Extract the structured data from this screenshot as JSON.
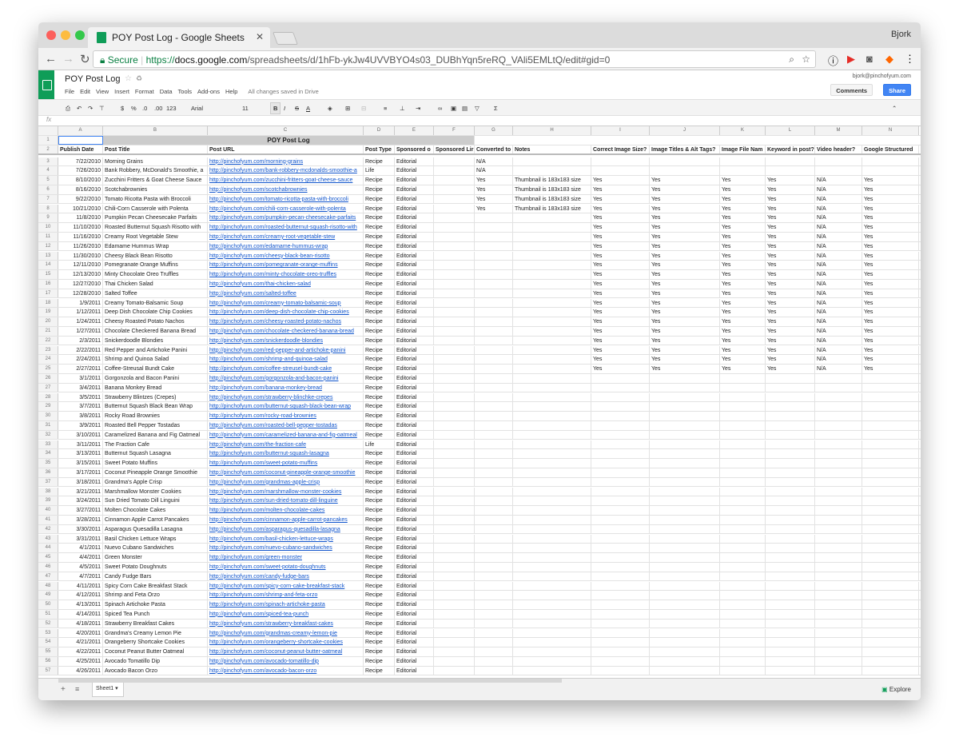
{
  "browser": {
    "tab_title": "POY Post Log - Google Sheets",
    "user": "Bjork",
    "secure_label": "Secure",
    "url_scheme": "https://",
    "url_domain": "docs.google.com",
    "url_path": "/spreadsheets/d/1hFb-ykJw4UVVBYO4s03_DUBhYqn5reRQ_VAli5EMLtQ/edit#gid=0"
  },
  "sheets": {
    "title": "POY Post Log",
    "menus": [
      "File",
      "Edit",
      "View",
      "Insert",
      "Format",
      "Data",
      "Tools",
      "Add-ons",
      "Help"
    ],
    "saved": "All changes saved in Drive",
    "email": "bjork@pinchofyum.com",
    "comments": "Comments",
    "share": "Share",
    "toolbar": {
      "currency": "$",
      "percent": "%",
      "dec_less": ".0",
      "dec_more": ".00",
      "format": "123",
      "font": "Arial",
      "size": "11",
      "bold": "B",
      "italic": "I",
      "strike": "S",
      "color": "A"
    },
    "fx": "fx",
    "sheet_tab": "Sheet1",
    "explore": "Explore"
  },
  "columns": [
    "A",
    "B",
    "C",
    "D",
    "E",
    "F",
    "G",
    "H",
    "I",
    "J",
    "K",
    "L",
    "M",
    "N"
  ],
  "title_row": "POY Post Log",
  "headers": [
    "Publish Date",
    "Post Title",
    "Post URL",
    "Post Type",
    "Sponsored o",
    "Sponsored Lir",
    "Converted to",
    "Notes",
    "Correct Image Size?",
    "Image Titles & Alt Tags?",
    "Image File Nam",
    "Keyword in post?",
    "Video header?",
    "Google Structured"
  ],
  "rows": [
    [
      "7/22/2010",
      "Morning Grains",
      "http://pinchofyum.com/morning-grains",
      "Recipe",
      "Editorial",
      "",
      "N/A"
    ],
    [
      "7/26/2010",
      "Bank Robbery, McDonald's Smoothie, a",
      "http://pinchofyum.com/bank-robbery-mcdonalds-smoothie-a",
      "Life",
      "Editorial",
      "",
      "N/A"
    ],
    [
      "8/10/2010",
      "Zucchini Fritters & Goat Cheese Sauce",
      "http://pinchofyum.com/zucchini-fritters-goat-cheese-sauce",
      "Recipe",
      "Editorial",
      "",
      "Yes",
      "Thumbnail is 183x183 size",
      "Yes",
      "Yes",
      "Yes",
      "Yes",
      "N/A",
      "Yes"
    ],
    [
      "8/16/2010",
      "Scotchabrownies",
      "http://pinchofyum.com/scotchabrownies",
      "Recipe",
      "Editorial",
      "",
      "Yes",
      "Thumbnail is 183x183 size",
      "Yes",
      "Yes",
      "Yes",
      "Yes",
      "N/A",
      "Yes"
    ],
    [
      "9/22/2010",
      "Tomato Ricotta Pasta with Broccoli",
      "http://pinchofyum.com/tomato-ricotta-pasta-with-broccoli",
      "Recipe",
      "Editorial",
      "",
      "Yes",
      "Thumbnail is 183x183 size",
      "Yes",
      "Yes",
      "Yes",
      "Yes",
      "N/A",
      "Yes"
    ],
    [
      "10/21/2010",
      "Chili-Corn Casserole with Polenta",
      "http://pinchofyum.com/chili-corn-casserole-with-polenta",
      "Recipe",
      "Editorial",
      "",
      "Yes",
      "Thumbnail is 183x183 size",
      "Yes",
      "Yes",
      "Yes",
      "Yes",
      "N/A",
      "Yes"
    ],
    [
      "11/8/2010",
      "Pumpkin Pecan Cheesecake Parfaits",
      "http://pinchofyum.com/pumpkin-pecan-cheesecake-parfaits",
      "Recipe",
      "Editorial",
      "",
      "",
      "",
      "Yes",
      "Yes",
      "Yes",
      "Yes",
      "N/A",
      "Yes"
    ],
    [
      "11/10/2010",
      "Roasted Butternut Squash Risotto with",
      "http://pinchofyum.com/roasted-butternut-squash-risotto-with",
      "Recipe",
      "Editorial",
      "",
      "",
      "",
      "Yes",
      "Yes",
      "Yes",
      "Yes",
      "N/A",
      "Yes"
    ],
    [
      "11/16/2010",
      "Creamy Root Vegetable Stew",
      "http://pinchofyum.com/creamy-root-vegetable-stew",
      "Recipe",
      "Editorial",
      "",
      "",
      "",
      "Yes",
      "Yes",
      "Yes",
      "Yes",
      "N/A",
      "Yes"
    ],
    [
      "11/26/2010",
      "Edamame Hummus Wrap",
      "http://pinchofyum.com/edamame-hummus-wrap",
      "Recipe",
      "Editorial",
      "",
      "",
      "",
      "Yes",
      "Yes",
      "Yes",
      "Yes",
      "N/A",
      "Yes"
    ],
    [
      "11/30/2010",
      "Cheesy Black Bean Risotto",
      "http://pinchofyum.com/cheesy-black-bean-risotto",
      "Recipe",
      "Editorial",
      "",
      "",
      "",
      "Yes",
      "Yes",
      "Yes",
      "Yes",
      "N/A",
      "Yes"
    ],
    [
      "12/11/2010",
      "Pomegranate Orange Muffins",
      "http://pinchofyum.com/pomegranate-orange-muffins",
      "Recipe",
      "Editorial",
      "",
      "",
      "",
      "Yes",
      "Yes",
      "Yes",
      "Yes",
      "N/A",
      "Yes"
    ],
    [
      "12/13/2010",
      "Minty Chocolate Oreo Truffles",
      "http://pinchofyum.com/minty-chocolate-oreo-truffles",
      "Recipe",
      "Editorial",
      "",
      "",
      "",
      "Yes",
      "Yes",
      "Yes",
      "Yes",
      "N/A",
      "Yes"
    ],
    [
      "12/27/2010",
      "Thai Chicken Salad",
      "http://pinchofyum.com/thai-chicken-salad",
      "Recipe",
      "Editorial",
      "",
      "",
      "",
      "Yes",
      "Yes",
      "Yes",
      "Yes",
      "N/A",
      "Yes"
    ],
    [
      "12/28/2010",
      "Salted Toffee",
      "http://pinchofyum.com/salted-toffee",
      "Recipe",
      "Editorial",
      "",
      "",
      "",
      "Yes",
      "Yes",
      "Yes",
      "Yes",
      "N/A",
      "Yes"
    ],
    [
      "1/9/2011",
      "Creamy Tomato-Balsamic Soup",
      "http://pinchofyum.com/creamy-tomato-balsamic-soup",
      "Recipe",
      "Editorial",
      "",
      "",
      "",
      "Yes",
      "Yes",
      "Yes",
      "Yes",
      "N/A",
      "Yes"
    ],
    [
      "1/12/2011",
      "Deep Dish Chocolate Chip Cookies",
      "http://pinchofyum.com/deep-dish-chocolate-chip-cookies",
      "Recipe",
      "Editorial",
      "",
      "",
      "",
      "Yes",
      "Yes",
      "Yes",
      "Yes",
      "N/A",
      "Yes"
    ],
    [
      "1/24/2011",
      "Cheesy Roasted Potato Nachos",
      "http://pinchofyum.com/cheesy-roasted-potato-nachos",
      "Recipe",
      "Editorial",
      "",
      "",
      "",
      "Yes",
      "Yes",
      "Yes",
      "Yes",
      "N/A",
      "Yes"
    ],
    [
      "1/27/2011",
      "Chocolate Checkered Banana Bread",
      "http://pinchofyum.com/chocolate-checkered-banana-bread",
      "Recipe",
      "Editorial",
      "",
      "",
      "",
      "Yes",
      "Yes",
      "Yes",
      "Yes",
      "N/A",
      "Yes"
    ],
    [
      "2/3/2011",
      "Snickerdoodle Blondies",
      "http://pinchofyum.com/snickerdoodle-blondies",
      "Recipe",
      "Editorial",
      "",
      "",
      "",
      "Yes",
      "Yes",
      "Yes",
      "Yes",
      "N/A",
      "Yes"
    ],
    [
      "2/22/2011",
      "Red Pepper and Artichoke Panini",
      "http://pinchofyum.com/red-pepper-and-artichoke-panini",
      "Recipe",
      "Editorial",
      "",
      "",
      "",
      "Yes",
      "Yes",
      "Yes",
      "Yes",
      "N/A",
      "Yes"
    ],
    [
      "2/24/2011",
      "Shrimp and Quinoa Salad",
      "http://pinchofyum.com/shrimp-and-quinoa-salad",
      "Recipe",
      "Editorial",
      "",
      "",
      "",
      "Yes",
      "Yes",
      "Yes",
      "Yes",
      "N/A",
      "Yes"
    ],
    [
      "2/27/2011",
      "Coffee-Streusal Bundt Cake",
      "http://pinchofyum.com/coffee-streusel-bundt-cake",
      "Recipe",
      "Editorial",
      "",
      "",
      "",
      "Yes",
      "Yes",
      "Yes",
      "Yes",
      "N/A",
      "Yes"
    ],
    [
      "3/1/2011",
      "Gorgonzola and Bacon Panini",
      "http://pinchofyum.com/gorgonzola-and-bacon-panini",
      "Recipe",
      "Editorial"
    ],
    [
      "3/4/2011",
      "Banana Monkey Bread",
      "http://pinchofyum.com/banana-monkey-bread",
      "Recipe",
      "Editorial"
    ],
    [
      "3/5/2011",
      "Strawberry Blintzes (Crepes)",
      "http://pinchofyum.com/strawberry-blinchke-crepes",
      "Recipe",
      "Editorial"
    ],
    [
      "3/7/2011",
      "Butternut Squash Black Bean Wrap",
      "http://pinchofyum.com/butternut-squash-black-bean-wrap",
      "Recipe",
      "Editorial"
    ],
    [
      "3/8/2011",
      "Rocky Road Brownies",
      "http://pinchofyum.com/rocky-road-brownies",
      "Recipe",
      "Editorial"
    ],
    [
      "3/9/2011",
      "Roasted Bell Pepper Tostadas",
      "http://pinchofyum.com/roasted-bell-pepper-tostadas",
      "Recipe",
      "Editorial"
    ],
    [
      "3/10/2011",
      "Caramelized Banana and Fig Oatmeal",
      "http://pinchofyum.com/caramelized-banana-and-fig-oatmeal",
      "Recipe",
      "Editorial"
    ],
    [
      "3/11/2011",
      "The Fraction Cafe",
      "http://pinchofyum.com/the-fraction-cafe",
      "Life",
      "Editorial"
    ],
    [
      "3/13/2011",
      "Butternut Squash Lasagna",
      "http://pinchofyum.com/butternut-squash-lasagna",
      "Recipe",
      "Editorial"
    ],
    [
      "3/15/2011",
      "Sweet Potato Muffins",
      "http://pinchofyum.com/sweet-potato-muffins",
      "Recipe",
      "Editorial"
    ],
    [
      "3/17/2011",
      "Coconut Pineapple Orange Smoothie",
      "http://pinchofyum.com/coconut-pineapple-orange-smoothie",
      "Recipe",
      "Editorial"
    ],
    [
      "3/18/2011",
      "Grandma's Apple Crisp",
      "http://pinchofyum.com/grandmas-apple-crisp",
      "Recipe",
      "Editorial"
    ],
    [
      "3/21/2011",
      "Marshmallow Monster Cookies",
      "http://pinchofyum.com/marshmallow-monster-cookies",
      "Recipe",
      "Editorial"
    ],
    [
      "3/24/2011",
      "Sun Dried Tomato Dill Linguini",
      "http://pinchofyum.com/sun-dried-tomato-dill-linguine",
      "Recipe",
      "Editorial"
    ],
    [
      "3/27/2011",
      "Molten Chocolate Cakes",
      "http://pinchofyum.com/molten-chocolate-cakes",
      "Recipe",
      "Editorial"
    ],
    [
      "3/28/2011",
      "Cinnamon Apple Carrot Pancakes",
      "http://pinchofyum.com/cinnamon-apple-carrot-pancakes",
      "Recipe",
      "Editorial"
    ],
    [
      "3/30/2011",
      "Asparagus Quesadilla Lasagna",
      "http://pinchofyum.com/asparagus-quesadilla-lasagna",
      "Recipe",
      "Editorial"
    ],
    [
      "3/31/2011",
      "Basil Chicken Lettuce Wraps",
      "http://pinchofyum.com/basil-chicken-lettuce-wraps",
      "Recipe",
      "Editorial"
    ],
    [
      "4/1/2011",
      "Nuevo Cubano Sandwiches",
      "http://pinchofyum.com/nuevo-cubano-sandwiches",
      "Recipe",
      "Editorial"
    ],
    [
      "4/4/2011",
      "Green Monster",
      "http://pinchofyum.com/green-monster",
      "Recipe",
      "Editorial"
    ],
    [
      "4/5/2011",
      "Sweet Potato Doughnuts",
      "http://pinchofyum.com/sweet-potato-doughnuts",
      "Recipe",
      "Editorial"
    ],
    [
      "4/7/2011",
      "Candy Fudge Bars",
      "http://pinchofyum.com/candy-fudge-bars",
      "Recipe",
      "Editorial"
    ],
    [
      "4/11/2011",
      "Spicy Corn Cake Breakfast Stack",
      "http://pinchofyum.com/spicy-corn-cake-breakfast-stack",
      "Recipe",
      "Editorial"
    ],
    [
      "4/12/2011",
      "Shrimp and Feta Orzo",
      "http://pinchofyum.com/shrimp-and-feta-orzo",
      "Recipe",
      "Editorial"
    ],
    [
      "4/13/2011",
      "Spinach Artichoke Pasta",
      "http://pinchofyum.com/spinach-artichoke-pasta",
      "Recipe",
      "Editorial"
    ],
    [
      "4/14/2011",
      "Spiced Tea Punch",
      "http://pinchofyum.com/spiced-tea-punch",
      "Recipe",
      "Editorial"
    ],
    [
      "4/18/2011",
      "Strawberry Breakfast Cakes",
      "http://pinchofyum.com/strawberry-breakfast-cakes",
      "Recipe",
      "Editorial"
    ],
    [
      "4/20/2011",
      "Grandma's Creamy Lemon Pie",
      "http://pinchofyum.com/grandmas-creamy-lemon-pie",
      "Recipe",
      "Editorial"
    ],
    [
      "4/21/2011",
      "Orangeberry Shortcake Cookies",
      "http://pinchofyum.com/orangeberry-shortcake-cookies",
      "Recipe",
      "Editorial"
    ],
    [
      "4/22/2011",
      "Coconut Peanut Butter Oatmeal",
      "http://pinchofyum.com/coconut-peanut-butter-oatmeal",
      "Recipe",
      "Editorial"
    ],
    [
      "4/25/2011",
      "Avocado Tomatillo Dip",
      "http://pinchofyum.com/avocado-tomatillo-dip",
      "Recipe",
      "Editorial"
    ],
    [
      "4/26/2011",
      "Avocado Bacon Orzo",
      "http://pinchofyum.com/avocado-bacon-orzo",
      "Recipe",
      "Editorial"
    ]
  ],
  "colors": {
    "brand": "#0f9d58",
    "share": "#4285f4",
    "link": "#1155cc",
    "title_fill": "#cccccc"
  }
}
